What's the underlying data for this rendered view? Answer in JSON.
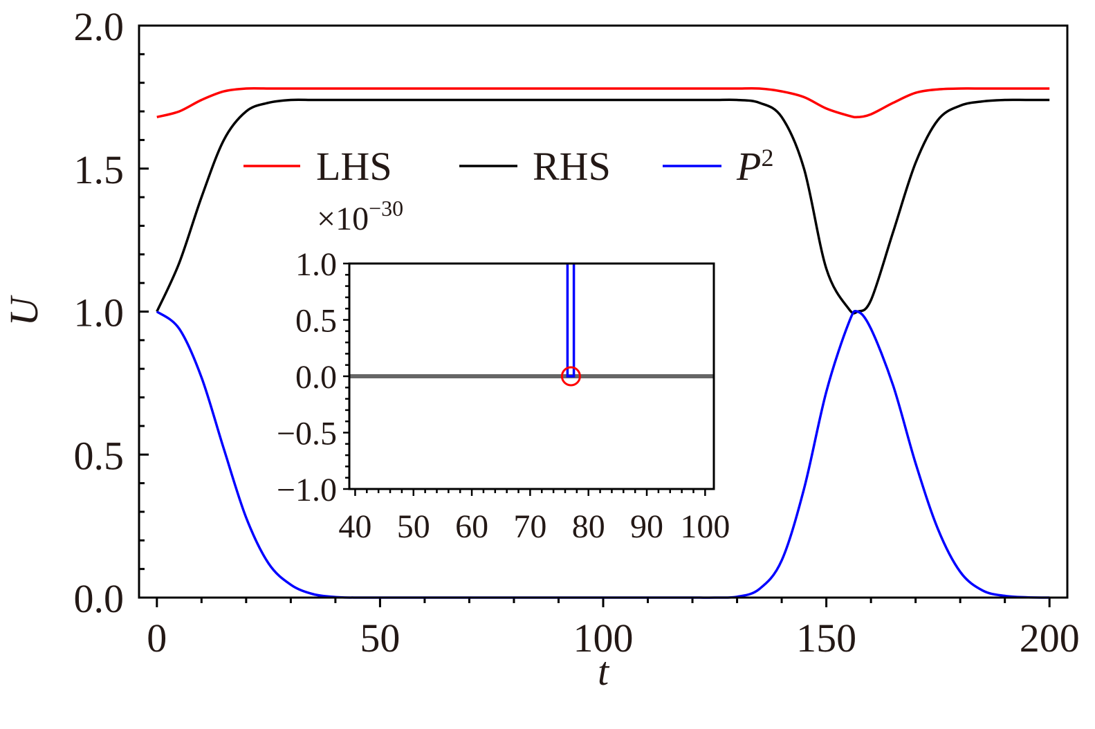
{
  "chart_data": [
    {
      "type": "line",
      "title": "",
      "xlabel": "t",
      "ylabel": "U",
      "xlim": [
        -4,
        204
      ],
      "ylim": [
        0,
        2.0
      ],
      "x_ticks": [
        0,
        50,
        100,
        150,
        200
      ],
      "x_tick_labels": [
        "0",
        "50",
        "100",
        "150",
        "200"
      ],
      "y_ticks": [
        0,
        0.5,
        1.0,
        1.5,
        2.0
      ],
      "y_tick_labels": [
        "0.0",
        "0.5",
        "1.0",
        "1.5",
        "2.0"
      ],
      "grid": false,
      "legend_position": "top-center",
      "x": [
        0,
        5,
        10,
        15,
        20,
        25,
        30,
        35,
        40,
        45,
        50,
        55,
        60,
        65,
        70,
        75,
        80,
        85,
        90,
        95,
        100,
        105,
        110,
        115,
        120,
        125,
        130,
        135,
        140,
        145,
        150,
        155,
        157,
        160,
        165,
        170,
        175,
        180,
        185,
        190,
        195,
        200
      ],
      "series": [
        {
          "name": "LHS",
          "color": "#ff0000",
          "values": [
            1.68,
            1.7,
            1.74,
            1.77,
            1.78,
            1.78,
            1.78,
            1.78,
            1.78,
            1.78,
            1.78,
            1.78,
            1.78,
            1.78,
            1.78,
            1.78,
            1.78,
            1.78,
            1.78,
            1.78,
            1.78,
            1.78,
            1.78,
            1.78,
            1.78,
            1.78,
            1.78,
            1.78,
            1.77,
            1.75,
            1.71,
            1.685,
            1.68,
            1.69,
            1.73,
            1.765,
            1.777,
            1.78,
            1.78,
            1.78,
            1.78,
            1.78
          ]
        },
        {
          "name": "RHS",
          "color": "#000000",
          "values": [
            1.0,
            1.17,
            1.4,
            1.6,
            1.7,
            1.73,
            1.74,
            1.74,
            1.74,
            1.74,
            1.74,
            1.74,
            1.74,
            1.74,
            1.74,
            1.74,
            1.74,
            1.74,
            1.74,
            1.74,
            1.74,
            1.74,
            1.74,
            1.74,
            1.74,
            1.74,
            1.74,
            1.73,
            1.68,
            1.5,
            1.15,
            1.01,
            1.0,
            1.04,
            1.28,
            1.52,
            1.67,
            1.72,
            1.735,
            1.74,
            1.74,
            1.74
          ]
        },
        {
          "name": "P²",
          "color": "#0000ff",
          "values": [
            1.0,
            0.94,
            0.77,
            0.52,
            0.28,
            0.12,
            0.045,
            0.012,
            0.002,
            0.0,
            0.0,
            0.0,
            0.0,
            0.0,
            0.0,
            0.0,
            0.0,
            0.0,
            0.0,
            0.0,
            0.0,
            0.0,
            0.0,
            0.0,
            0.0,
            0.0,
            0.003,
            0.03,
            0.13,
            0.38,
            0.72,
            0.96,
            1.0,
            0.94,
            0.74,
            0.47,
            0.24,
            0.09,
            0.025,
            0.006,
            0.001,
            0.0
          ]
        }
      ]
    },
    {
      "type": "line",
      "title": "",
      "inset": true,
      "y_multiplier_label": "×10",
      "y_multiplier_exponent": "−30",
      "xlim": [
        39,
        101.5
      ],
      "ylim": [
        -1.0,
        1.0
      ],
      "x_ticks": [
        40,
        50,
        60,
        70,
        80,
        90,
        100
      ],
      "x_tick_labels": [
        "40",
        "50",
        "60",
        "70",
        "80",
        "90",
        "100"
      ],
      "y_ticks": [
        -1.0,
        -0.5,
        0.0,
        0.5,
        1.0
      ],
      "y_tick_labels": [
        "−1.0",
        "−0.5",
        "0.0",
        "0.5",
        "1.0"
      ],
      "grid": false,
      "series": [
        {
          "color": "#666666",
          "x": [
            39,
            101.5
          ],
          "values": [
            0,
            0
          ]
        },
        {
          "color": "#0000ff",
          "x": [
            76.4,
            76.4,
            77.5,
            77.5
          ],
          "values": [
            1.0,
            0.0,
            0.0,
            1.0
          ]
        }
      ],
      "annotation": {
        "shape": "circle",
        "color": "#ff0000",
        "x": 77.0,
        "y": 0.0
      }
    }
  ]
}
